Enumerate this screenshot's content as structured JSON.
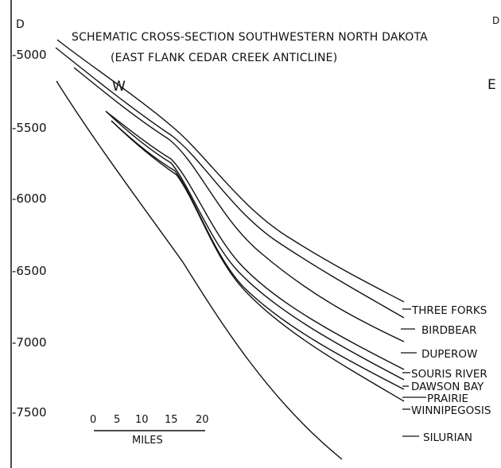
{
  "corner_left": "D",
  "corner_right": "D",
  "title_line1": "SCHEMATIC CROSS-SECTION SOUTHWESTERN NORTH DAKOTA",
  "title_line2": "(EAST FLANK CEDAR CREEK ANTICLINE)",
  "west_label": "W",
  "east_label": "E",
  "depth_ticks": [
    "-5000",
    "-5500",
    "-6000",
    "-6500",
    "-7000",
    "-7500"
  ],
  "formations": [
    {
      "name": "THREE FORKS",
      "label": "THREE FORKS"
    },
    {
      "name": "BIRDBEAR",
      "label": "BIRDBEAR"
    },
    {
      "name": "DUPEROW",
      "label": "DUPEROW"
    },
    {
      "name": "SOURIS RIVER",
      "label": "SOURIS RIVER"
    },
    {
      "name": "DAWSON BAY",
      "label": "DAWSON BAY"
    },
    {
      "name": "PRAIRIE",
      "label": "PRAIRIE"
    },
    {
      "name": "WINNIPEGOSIS",
      "label": "WINNIPEGOSIS"
    },
    {
      "name": "SILURIAN",
      "label": "SILURIAN"
    }
  ],
  "scale_ticks": [
    "0",
    "5",
    "10",
    "15",
    "20"
  ],
  "scale_unit": "MILES",
  "colors": {
    "ink": "#111111",
    "paper": "#ffffff"
  }
}
